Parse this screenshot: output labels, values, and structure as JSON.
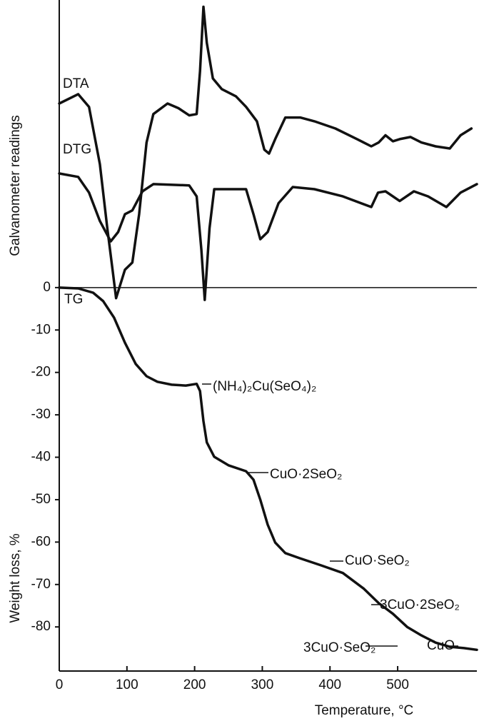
{
  "chart_data": {
    "type": "line",
    "ylabel": "Galvanometer readings",
    "y2label": "Weight loss, %",
    "xlabel": "Temperature, °C",
    "xlim": [
      0,
      617
    ],
    "ylim": [
      -90.4,
      67.8
    ],
    "xticks": [
      0,
      100,
      200,
      300,
      400,
      500
    ],
    "yticks": [
      0,
      -10,
      -20,
      -30,
      -40,
      -50,
      -60,
      -70,
      -80
    ],
    "zero_line": true,
    "series": [
      {
        "name": "DTA",
        "color": "#111111",
        "x": [
          0,
          28,
          44,
          60,
          71,
          79,
          84,
          97,
          108,
          118,
          129,
          139,
          160,
          176,
          192,
          203,
          208,
          213,
          218,
          227,
          240,
          261,
          276,
          292,
          303,
          310,
          319,
          334,
          356,
          377,
          408,
          440,
          461,
          472,
          482,
          493,
          503,
          519,
          535,
          556,
          577,
          593,
          609
        ],
        "values": [
          43.4,
          45.6,
          42.6,
          29.1,
          14.0,
          3.9,
          -2.5,
          4.2,
          5.9,
          17.3,
          34.2,
          40.9,
          43.4,
          42.3,
          40.6,
          40.9,
          51.0,
          66.2,
          57.7,
          49.3,
          46.8,
          45.1,
          42.6,
          39.2,
          32.5,
          31.6,
          35.0,
          40.1,
          40.1,
          39.2,
          37.5,
          35.0,
          33.3,
          34.2,
          35.9,
          34.5,
          35.0,
          35.5,
          34.2,
          33.3,
          32.8,
          35.9,
          37.5
        ]
      },
      {
        "name": "DTG",
        "color": "#111111",
        "x": [
          0,
          28,
          44,
          60,
          76,
          87,
          97,
          102,
          108,
          123,
          139,
          192,
          203,
          210,
          215,
          222,
          229,
          276,
          287,
          297,
          308,
          324,
          345,
          377,
          419,
          461,
          471,
          482,
          503,
          524,
          545,
          572,
          593,
          617
        ],
        "values": [
          26.9,
          26.1,
          22.4,
          15.7,
          10.9,
          13.1,
          17.3,
          17.7,
          18.2,
          22.7,
          24.4,
          24.1,
          21.5,
          8.9,
          -2.9,
          14.0,
          23.2,
          23.2,
          17.3,
          11.4,
          13.1,
          19.9,
          23.7,
          23.2,
          21.5,
          19.0,
          22.4,
          22.7,
          20.4,
          22.7,
          21.5,
          19.0,
          22.4,
          24.4
        ]
      },
      {
        "name": "TG",
        "color": "#111111",
        "x": [
          0,
          28,
          50,
          65,
          81,
          97,
          113,
          129,
          145,
          166,
          187,
          203,
          208,
          213,
          218,
          229,
          250,
          276,
          287,
          297,
          308,
          319,
          334,
          355,
          387,
          419,
          450,
          472,
          493,
          514,
          535,
          556,
          577,
          598,
          617
        ],
        "values": [
          0,
          -0.2,
          -1.2,
          -3.2,
          -7.1,
          -13.0,
          -18.0,
          -20.9,
          -22.2,
          -22.9,
          -23.1,
          -22.7,
          -24.4,
          -31.5,
          -36.5,
          -39.9,
          -41.9,
          -43.3,
          -45.3,
          -50.0,
          -55.9,
          -60.1,
          -62.6,
          -63.8,
          -65.5,
          -67.3,
          -71.0,
          -74.4,
          -76.9,
          -80.0,
          -82.0,
          -83.7,
          -84.7,
          -85.0,
          -85.4
        ]
      }
    ],
    "annotations": [
      "(NH₄)₂Cu(SeO₄)₂",
      "CuO·2SeO₂",
      "CuO·SeO₂",
      "3CuO·2SeO₂",
      "3CuO·SeO₂",
      "CuO"
    ]
  }
}
